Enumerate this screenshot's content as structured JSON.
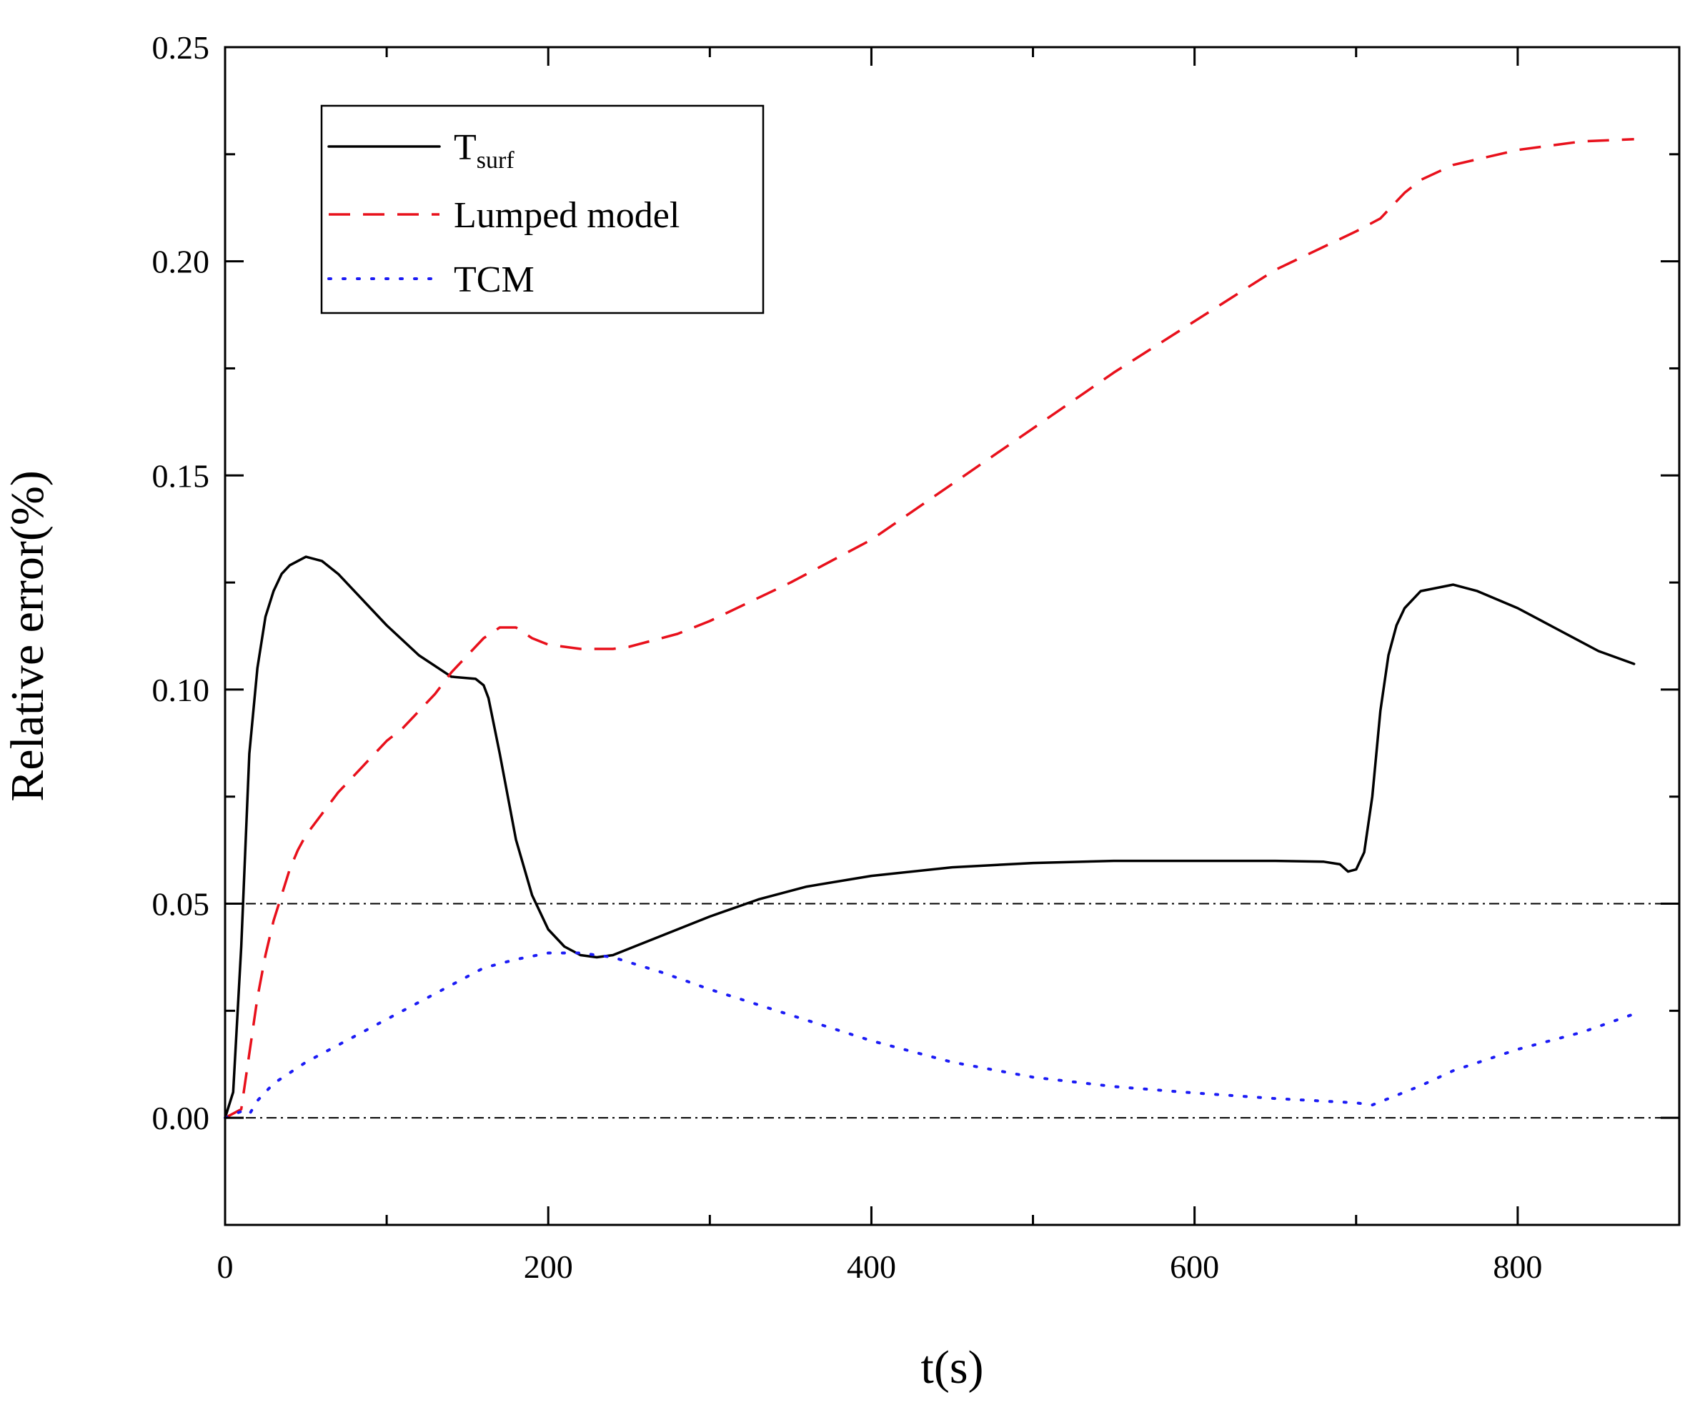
{
  "chart_data": {
    "type": "line",
    "xlabel": "t(s)",
    "ylabel": "Relative error(%)",
    "xlim": [
      0,
      900
    ],
    "ylim": [
      -0.025,
      0.25
    ],
    "x_ticks": [
      0,
      200,
      400,
      600,
      800
    ],
    "x_tick_labels": [
      "0",
      "200",
      "400",
      "600",
      "800"
    ],
    "y_ticks": [
      0.0,
      0.05,
      0.1,
      0.15,
      0.2,
      0.25
    ],
    "y_tick_labels": [
      "0.00",
      "0.05",
      "0.10",
      "0.15",
      "0.20",
      "0.25"
    ],
    "reference_lines": [
      0.0,
      0.05
    ],
    "legend": {
      "position": "top-left",
      "entries": [
        {
          "label": "T",
          "subscript": "surf",
          "series": "tsurf"
        },
        {
          "label": "Lumped model",
          "subscript": "",
          "series": "lumped"
        },
        {
          "label": "TCM",
          "subscript": "",
          "series": "tcm"
        }
      ]
    },
    "series": [
      {
        "id": "tsurf",
        "name": "Tsurf",
        "color": "#000000",
        "style": "solid",
        "x": [
          0,
          5,
          10,
          15,
          20,
          25,
          30,
          35,
          40,
          50,
          60,
          70,
          80,
          100,
          120,
          140,
          155,
          160,
          163,
          170,
          180,
          190,
          200,
          210,
          220,
          230,
          240,
          260,
          280,
          300,
          330,
          360,
          400,
          450,
          500,
          550,
          600,
          650,
          680,
          690,
          695,
          700,
          705,
          710,
          715,
          720,
          725,
          730,
          740,
          760,
          775,
          800,
          825,
          850,
          872
        ],
        "y": [
          0.0,
          0.006,
          0.04,
          0.085,
          0.105,
          0.117,
          0.123,
          0.127,
          0.129,
          0.131,
          0.13,
          0.127,
          0.123,
          0.115,
          0.108,
          0.103,
          0.1025,
          0.101,
          0.098,
          0.085,
          0.065,
          0.052,
          0.044,
          0.04,
          0.038,
          0.0375,
          0.038,
          0.041,
          0.044,
          0.047,
          0.051,
          0.054,
          0.0565,
          0.0585,
          0.0595,
          0.06,
          0.06,
          0.06,
          0.0598,
          0.0592,
          0.0575,
          0.058,
          0.062,
          0.075,
          0.095,
          0.108,
          0.115,
          0.119,
          0.123,
          0.1245,
          0.123,
          0.119,
          0.114,
          0.109,
          0.106
        ]
      },
      {
        "id": "lumped",
        "name": "Lumped model",
        "color": "#e8101b",
        "style": "dashed",
        "x": [
          0,
          10,
          15,
          20,
          25,
          30,
          35,
          40,
          45,
          50,
          60,
          70,
          80,
          90,
          100,
          110,
          120,
          130,
          140,
          150,
          160,
          170,
          180,
          190,
          200,
          210,
          220,
          230,
          240,
          250,
          260,
          280,
          300,
          350,
          400,
          450,
          500,
          550,
          600,
          650,
          700,
          715,
          720,
          725,
          730,
          740,
          760,
          800,
          840,
          872
        ],
        "y": [
          0.0,
          0.002,
          0.015,
          0.028,
          0.038,
          0.046,
          0.052,
          0.058,
          0.0625,
          0.066,
          0.071,
          0.076,
          0.08,
          0.084,
          0.088,
          0.091,
          0.095,
          0.099,
          0.104,
          0.108,
          0.112,
          0.1145,
          0.1145,
          0.112,
          0.1105,
          0.11,
          0.1095,
          0.1095,
          0.1095,
          0.11,
          0.111,
          0.113,
          0.116,
          0.125,
          0.135,
          0.148,
          0.161,
          0.174,
          0.186,
          0.198,
          0.207,
          0.21,
          0.212,
          0.214,
          0.216,
          0.219,
          0.2225,
          0.226,
          0.228,
          0.2285
        ]
      },
      {
        "id": "tcm",
        "name": "TCM",
        "color": "#1b1bf5",
        "style": "dotted",
        "x": [
          0,
          10,
          15,
          20,
          30,
          50,
          80,
          100,
          120,
          140,
          160,
          180,
          200,
          220,
          240,
          270,
          300,
          350,
          400,
          450,
          500,
          550,
          600,
          650,
          700,
          710,
          720,
          740,
          760,
          800,
          840,
          870
        ],
        "y": [
          0.0,
          0.0015,
          0.0008,
          0.004,
          0.008,
          0.013,
          0.019,
          0.023,
          0.027,
          0.031,
          0.035,
          0.037,
          0.0385,
          0.0385,
          0.0375,
          0.034,
          0.03,
          0.024,
          0.018,
          0.013,
          0.0095,
          0.0073,
          0.0058,
          0.0045,
          0.0035,
          0.003,
          0.0045,
          0.0075,
          0.011,
          0.016,
          0.02,
          0.024
        ]
      }
    ]
  }
}
